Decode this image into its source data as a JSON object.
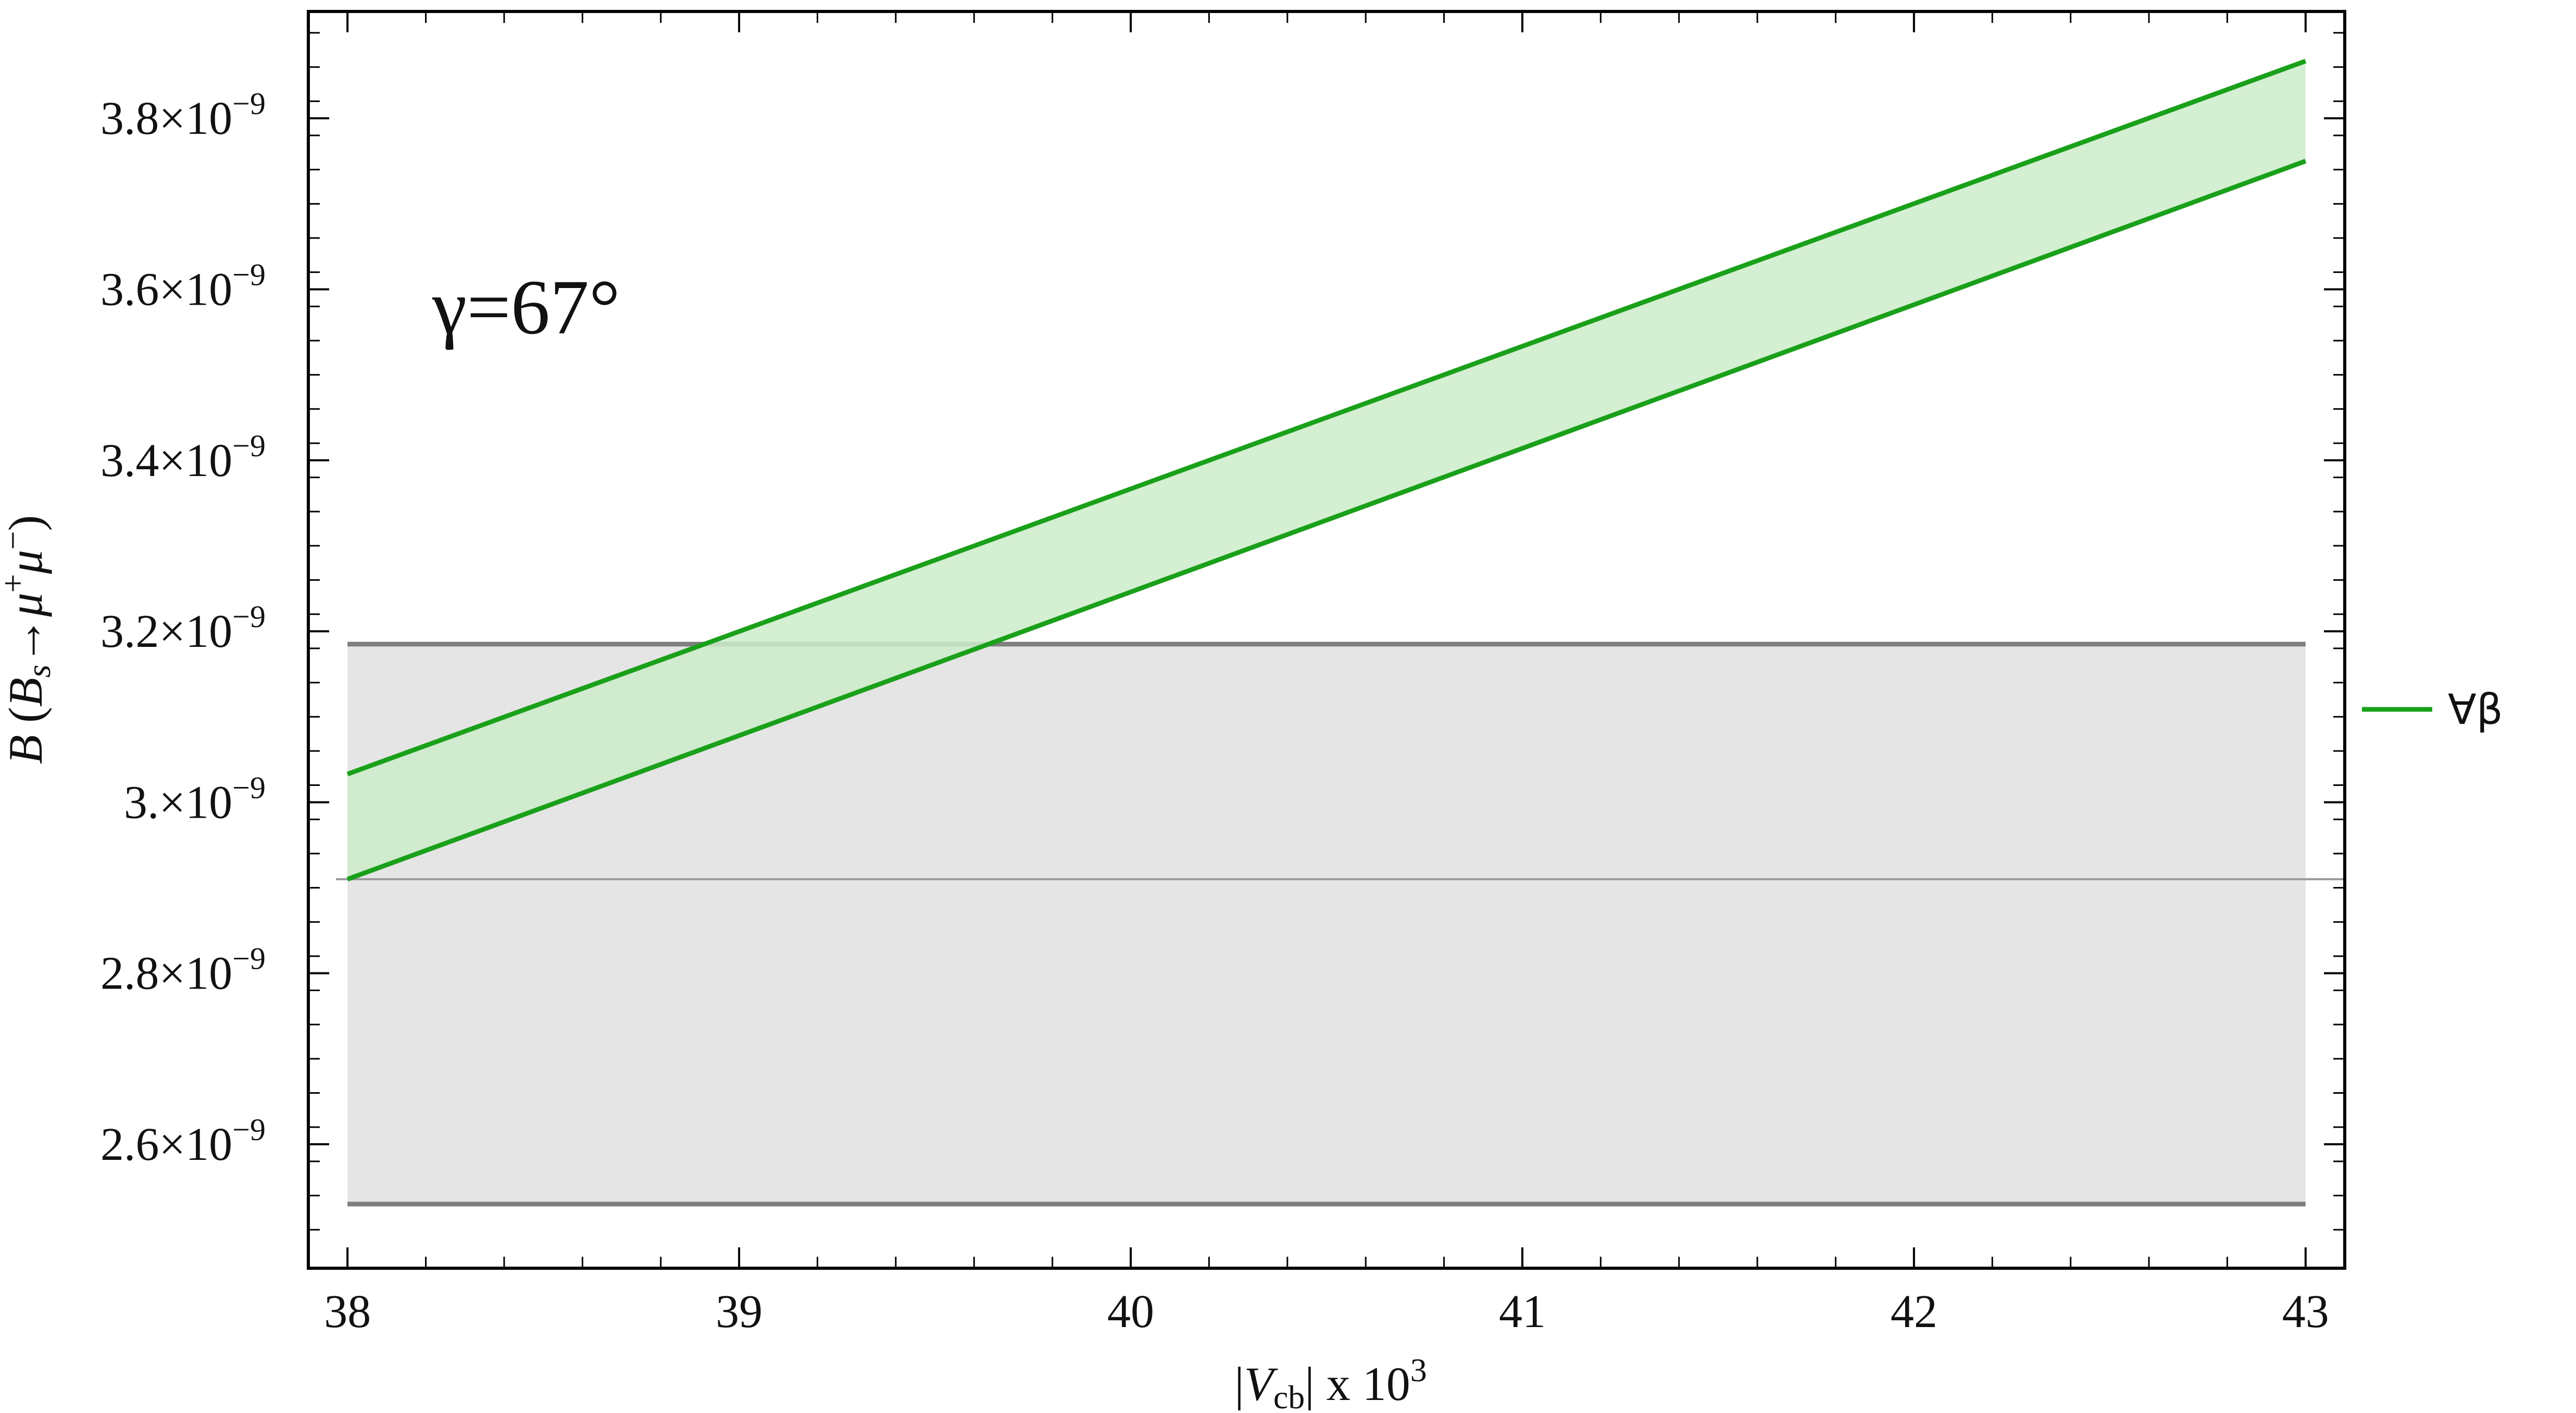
{
  "chart_data": {
    "type": "area",
    "title": "",
    "annotation": "γ=67°",
    "xlabel": {
      "prefix": "|",
      "italic": "V",
      "sub": "cb",
      "suffix": "| x 10",
      "sup": "3"
    },
    "ylabel": {
      "italic_b": "B",
      "open": " (",
      "italic_bs": "B",
      "sub_s": "s",
      "arrow": "→",
      "mu1": "μ",
      "plus": "+",
      "mu2": "μ",
      "minus": "−",
      "close": ")"
    },
    "xlim": [
      37.9,
      43.1
    ],
    "ylim": [
      2.455e-09,
      3.925e-09
    ],
    "x_ticks": [
      38,
      39,
      40,
      41,
      42,
      43
    ],
    "y_ticks": [
      {
        "value": 2.6e-09,
        "mantissa": "2.6",
        "exp": "−9"
      },
      {
        "value": 2.8e-09,
        "mantissa": "2.8",
        "exp": "−9"
      },
      {
        "value": 3e-09,
        "mantissa": "3.",
        "exp": "−9"
      },
      {
        "value": 3.2e-09,
        "mantissa": "3.2",
        "exp": "−9"
      },
      {
        "value": 3.4e-09,
        "mantissa": "3.4",
        "exp": "−9"
      },
      {
        "value": 3.6e-09,
        "mantissa": "3.6",
        "exp": "−9"
      },
      {
        "value": 3.8e-09,
        "mantissa": "3.8",
        "exp": "−9"
      }
    ],
    "times_sign": "×10",
    "series": [
      {
        "name": "∀β",
        "color": "#1aa01a",
        "fill": "#cdecca",
        "x": [
          38,
          43
        ],
        "upper": [
          3.033e-09,
          3.867e-09
        ],
        "lower": [
          2.91e-09,
          3.75e-09
        ]
      }
    ],
    "band": {
      "color": "#7f7f7f",
      "fill": "#e5e5e5",
      "x": [
        38,
        43
      ],
      "upper": 3.185e-09,
      "lower": 2.53e-09,
      "central": 2.91e-09
    },
    "legend": {
      "placement": "right",
      "entries": [
        {
          "label": "∀β",
          "color": "#1aa01a"
        }
      ]
    },
    "grid": false
  }
}
